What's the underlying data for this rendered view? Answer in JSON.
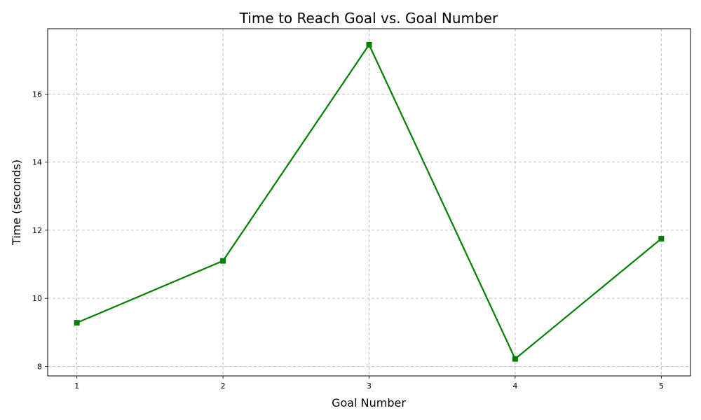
{
  "chart_data": {
    "type": "line",
    "title": "Time to Reach Goal vs. Goal Number",
    "xlabel": "Goal Number",
    "ylabel": "Time (seconds)",
    "x": [
      1,
      2,
      3,
      4,
      5
    ],
    "series": [
      {
        "values": [
          9.28,
          11.1,
          17.45,
          8.22,
          11.75
        ],
        "color": "#008000",
        "marker": "square"
      }
    ],
    "xticks": [
      "1",
      "2",
      "3",
      "4",
      "5"
    ],
    "yticks": [
      "8",
      "10",
      "12",
      "14",
      "16"
    ],
    "xlim": [
      0.8,
      5.2
    ],
    "ylim": [
      7.72,
      17.92
    ],
    "grid": true
  }
}
